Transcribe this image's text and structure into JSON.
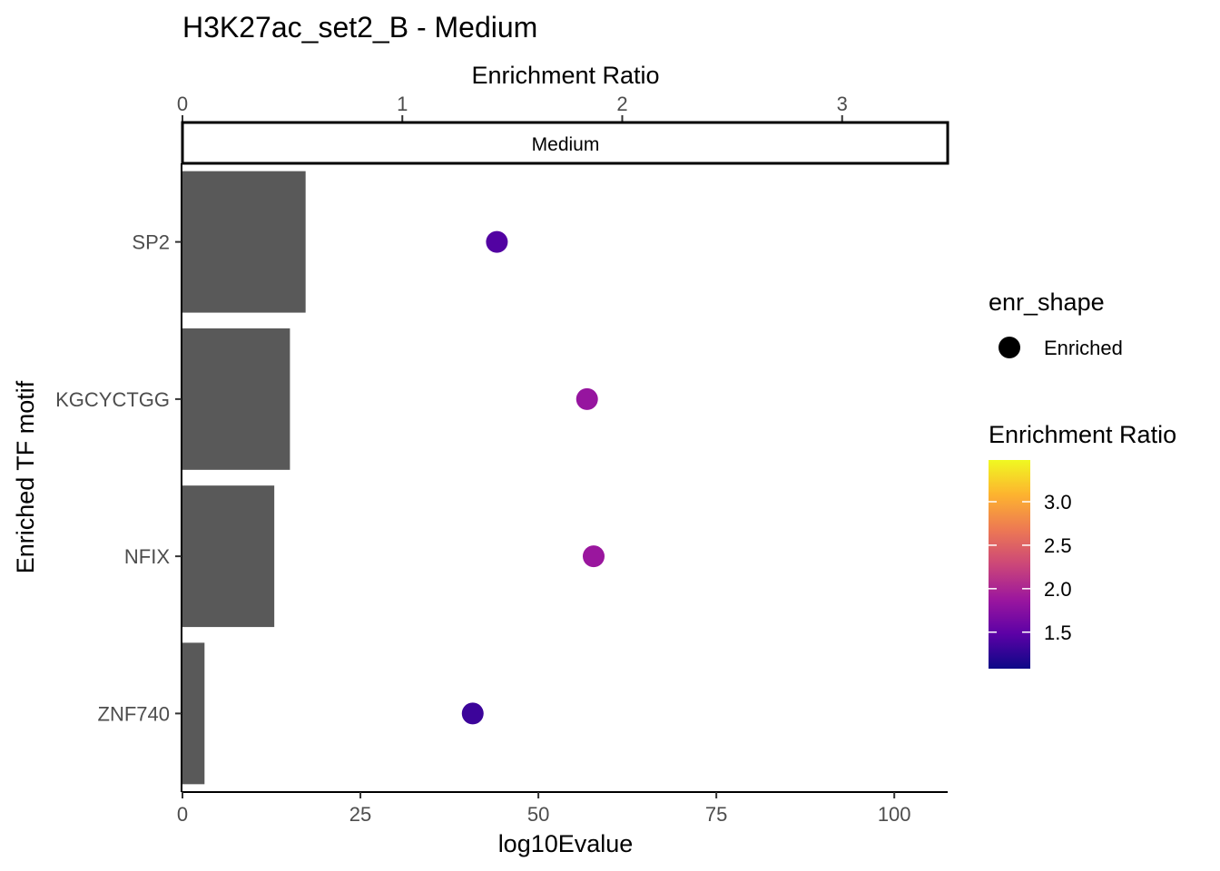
{
  "chart_data": {
    "type": "bar",
    "title": "H3K27ac_set2_B - Medium",
    "facet_label": "Medium",
    "xlabel": "log10Evalue",
    "ylabel": "Enriched TF motif",
    "top_axis_label": "Enrichment Ratio",
    "categories": [
      "SP2",
      "KGCYCTGG",
      "NFIX",
      "ZNF740"
    ],
    "bar_values": [
      17.3,
      15.1,
      12.9,
      3.1
    ],
    "enrichment_ratio": [
      1.43,
      1.84,
      1.87,
      1.32
    ],
    "xlim": [
      0,
      107.5
    ],
    "x_ticks": [
      "0",
      "25",
      "50",
      "75",
      "100"
    ],
    "x_tick_values": [
      0,
      25,
      50,
      75,
      100
    ],
    "top_xlim": [
      0,
      3.48
    ],
    "top_ticks": [
      "0",
      "1",
      "2",
      "3"
    ],
    "top_tick_values": [
      0,
      1,
      2,
      3
    ],
    "bar_color": "#595959",
    "legend_shape": {
      "title": "enr_shape",
      "label": "Enriched"
    },
    "legend_color": {
      "title": "Enrichment Ratio",
      "range": [
        1.08,
        3.48
      ],
      "ticks": [
        "1.5",
        "2.0",
        "2.5",
        "3.0"
      ],
      "tick_values": [
        1.5,
        2.0,
        2.5,
        3.0
      ],
      "palette": [
        "#0d0887",
        "#5c01a6",
        "#9c179e",
        "#cc4778",
        "#ed7953",
        "#fdb32f",
        "#f0f921"
      ]
    },
    "legend_placement": "right"
  }
}
